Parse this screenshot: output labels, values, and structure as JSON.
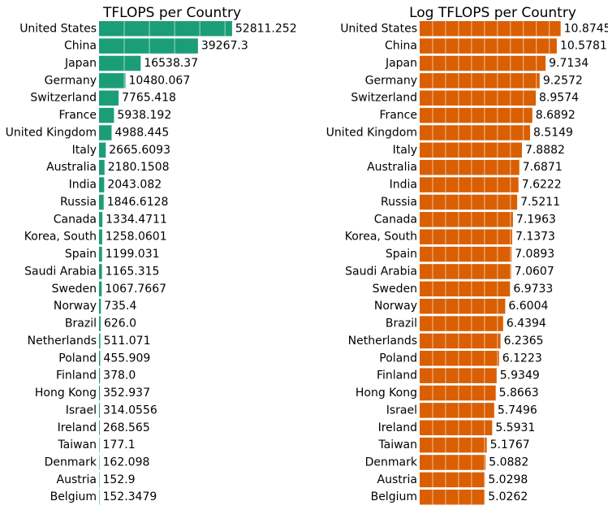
{
  "chart_data": [
    {
      "type": "bar",
      "orientation": "horizontal",
      "title": "TFLOPS per Country",
      "color": "#1b9e77",
      "xlim": [
        0,
        58000
      ],
      "grid": false,
      "categories": [
        "United States",
        "China",
        "Japan",
        "Germany",
        "Switzerland",
        "France",
        "United Kingdom",
        "Italy",
        "Australia",
        "India",
        "Russia",
        "Canada",
        "Korea, South",
        "Spain",
        "Saudi Arabia",
        "Sweden",
        "Norway",
        "Brazil",
        "Netherlands",
        "Poland",
        "Finland",
        "Hong Kong",
        "Israel",
        "Ireland",
        "Taiwan",
        "Denmark",
        "Austria",
        "Belgium"
      ],
      "values": [
        52811.252,
        39267.3,
        16538.37,
        10480.067,
        7765.418,
        5938.192,
        4988.445,
        2665.6093,
        2180.1508,
        2043.082,
        1846.6128,
        1334.4711,
        1258.0601,
        1199.031,
        1165.315,
        1067.7667,
        735.4,
        626.0,
        511.071,
        455.909,
        378.0,
        352.937,
        314.0556,
        268.565,
        177.1,
        162.098,
        152.9,
        152.3479
      ],
      "labels": [
        "52811.252",
        "39267.3",
        "16538.37",
        "10480.067",
        "7765.418",
        "5938.192",
        "4988.445",
        "2665.6093",
        "2180.1508",
        "2043.082",
        "1846.6128",
        "1334.4711",
        "1258.0601",
        "1199.031",
        "1165.315",
        "1067.7667",
        "735.4",
        "626.0",
        "511.071",
        "455.909",
        "378.0",
        "352.937",
        "314.0556",
        "268.565",
        "177.1",
        "162.098",
        "152.9",
        "152.3479"
      ]
    },
    {
      "type": "bar",
      "orientation": "horizontal",
      "title": "Log TFLOPS per Country",
      "color": "#d95f02",
      "xlim": [
        0,
        12.9
      ],
      "grid": false,
      "categories": [
        "United States",
        "China",
        "Japan",
        "Germany",
        "Switzerland",
        "France",
        "United Kingdom",
        "Italy",
        "Australia",
        "India",
        "Russia",
        "Canada",
        "Korea, South",
        "Spain",
        "Saudi Arabia",
        "Sweden",
        "Norway",
        "Brazil",
        "Netherlands",
        "Poland",
        "Finland",
        "Hong Kong",
        "Israel",
        "Ireland",
        "Taiwan",
        "Denmark",
        "Austria",
        "Belgium"
      ],
      "values": [
        10.8745,
        10.5781,
        9.7134,
        9.2572,
        8.9574,
        8.6892,
        8.5149,
        7.8882,
        7.6871,
        7.6222,
        7.5211,
        7.1963,
        7.1373,
        7.0893,
        7.0607,
        6.9733,
        6.6004,
        6.4394,
        6.2365,
        6.1223,
        5.9349,
        5.8663,
        5.7496,
        5.5931,
        5.1767,
        5.0882,
        5.0298,
        5.0262
      ],
      "labels": [
        "10.8745",
        "10.5781",
        "9.7134",
        "9.2572",
        "8.9574",
        "8.6892",
        "8.5149",
        "7.8882",
        "7.6871",
        "7.6222",
        "7.5211",
        "7.1963",
        "7.1373",
        "7.0893",
        "7.0607",
        "6.9733",
        "6.6004",
        "6.4394",
        "6.2365",
        "6.1223",
        "5.9349",
        "5.8663",
        "5.7496",
        "5.5931",
        "5.1767",
        "5.0882",
        "5.0298",
        "5.0262"
      ]
    }
  ]
}
